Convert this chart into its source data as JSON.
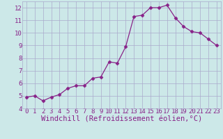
{
  "x": [
    0,
    1,
    2,
    3,
    4,
    5,
    6,
    7,
    8,
    9,
    10,
    11,
    12,
    13,
    14,
    15,
    16,
    17,
    18,
    19,
    20,
    21,
    22,
    23
  ],
  "y": [
    4.9,
    5.0,
    4.6,
    4.9,
    5.1,
    5.6,
    5.8,
    5.8,
    6.4,
    6.5,
    7.7,
    7.6,
    8.9,
    11.3,
    11.4,
    12.0,
    12.0,
    12.2,
    11.2,
    10.5,
    10.1,
    10.0,
    9.5,
    9.0
  ],
  "line_color": "#882288",
  "marker": "D",
  "marker_size": 2.5,
  "bg_color": "#cce8e8",
  "grid_color": "#aaaacc",
  "xlabel": "Windchill (Refroidissement éolien,°C)",
  "xlabel_color": "#882288",
  "ylim": [
    4,
    12.5
  ],
  "xlim": [
    -0.5,
    23.5
  ],
  "yticks": [
    4,
    5,
    6,
    7,
    8,
    9,
    10,
    11,
    12
  ],
  "xticks": [
    0,
    1,
    2,
    3,
    4,
    5,
    6,
    7,
    8,
    9,
    10,
    11,
    12,
    13,
    14,
    15,
    16,
    17,
    18,
    19,
    20,
    21,
    22,
    23
  ],
  "tick_label_color": "#882288",
  "tick_label_size": 6.5,
  "xlabel_size": 7.5
}
